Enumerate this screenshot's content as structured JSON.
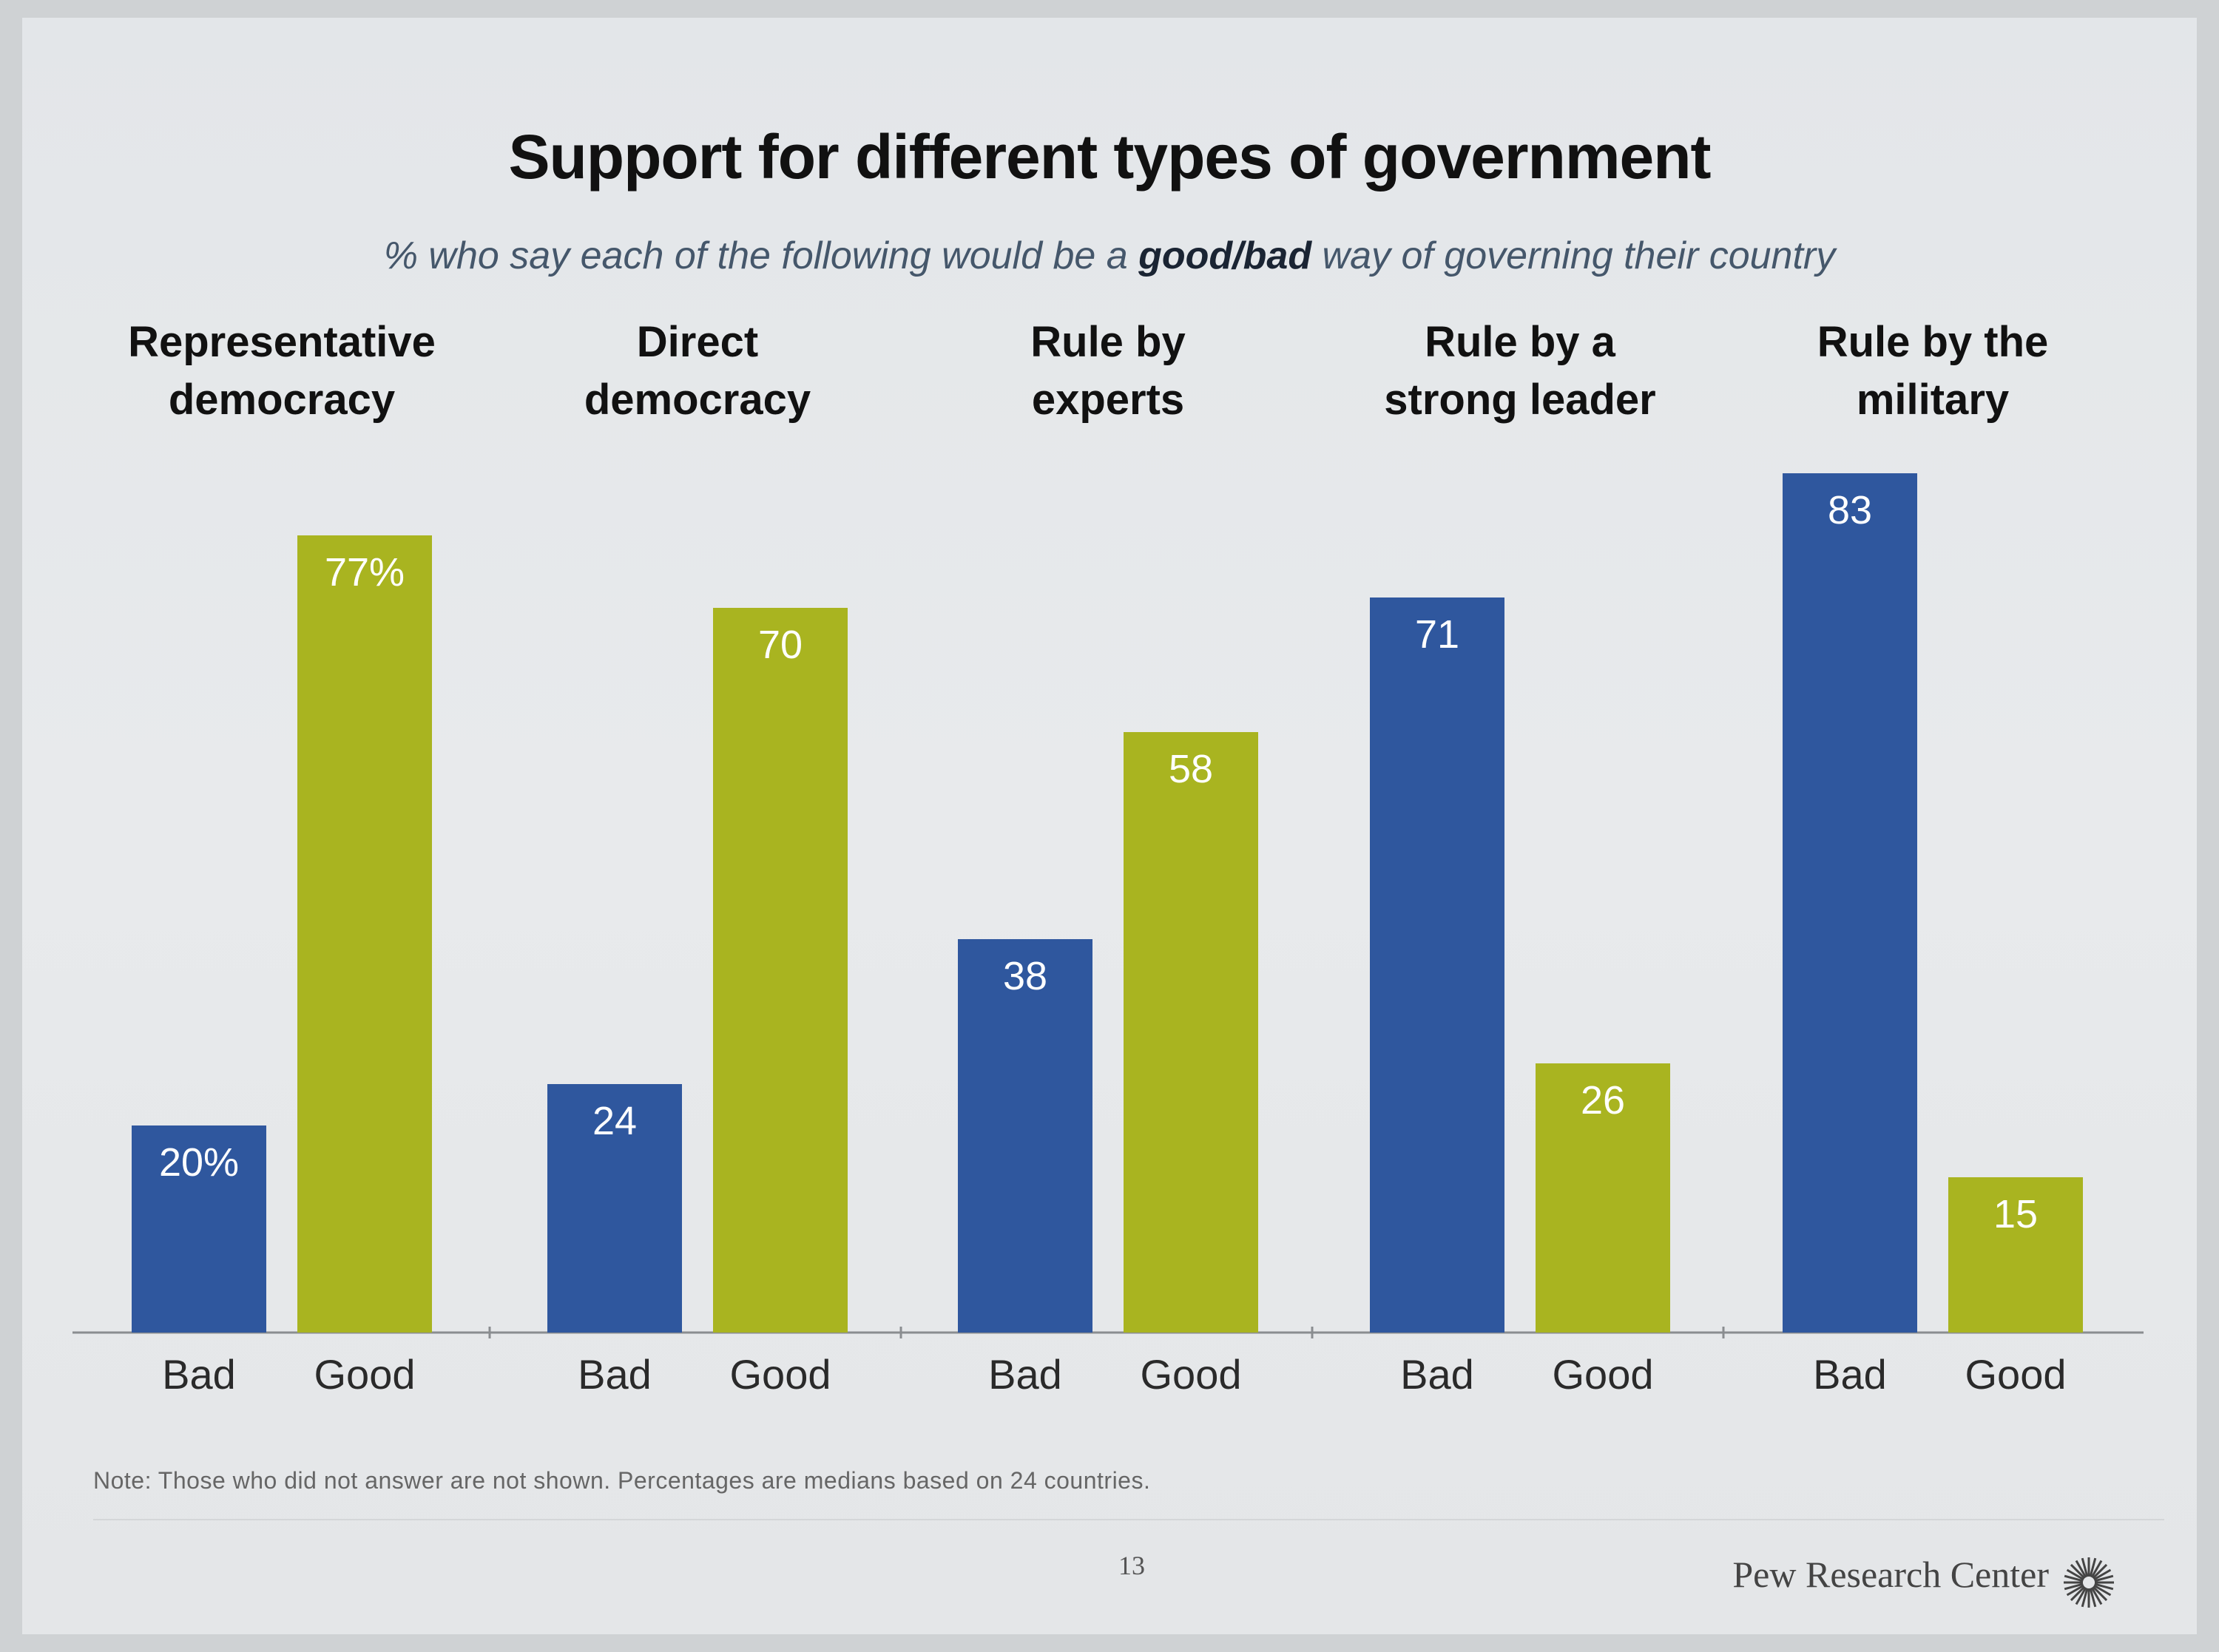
{
  "chart_data": {
    "type": "bar",
    "title": "Support for different types of government",
    "subtitle_parts": {
      "before": "% who say each of the following would be a ",
      "emphasis": "good/bad",
      "after": " way of governing their country"
    },
    "ylim": [
      0,
      100
    ],
    "colors": {
      "Bad": "#2f579e",
      "Good": "#a9b420"
    },
    "groups": [
      {
        "label_lines": [
          "Representative",
          "democracy"
        ],
        "bars": [
          {
            "name": "Bad",
            "value": 20,
            "display": "20%"
          },
          {
            "name": "Good",
            "value": 77,
            "display": "77%"
          }
        ]
      },
      {
        "label_lines": [
          "Direct",
          "democracy"
        ],
        "bars": [
          {
            "name": "Bad",
            "value": 24,
            "display": "24"
          },
          {
            "name": "Good",
            "value": 70,
            "display": "70"
          }
        ]
      },
      {
        "label_lines": [
          "Rule by",
          "experts"
        ],
        "bars": [
          {
            "name": "Bad",
            "value": 38,
            "display": "38"
          },
          {
            "name": "Good",
            "value": 58,
            "display": "58"
          }
        ]
      },
      {
        "label_lines": [
          "Rule by a",
          "strong leader"
        ],
        "bars": [
          {
            "name": "Bad",
            "value": 71,
            "display": "71"
          },
          {
            "name": "Good",
            "value": 26,
            "display": "26"
          }
        ]
      },
      {
        "label_lines": [
          "Rule by the",
          "military"
        ],
        "bars": [
          {
            "name": "Bad",
            "value": 83,
            "display": "83"
          },
          {
            "name": "Good",
            "value": 15,
            "display": "15"
          }
        ]
      }
    ]
  },
  "note": "Note: Those who did not answer are not shown. Percentages are medians based on 24 countries.",
  "page_number": "13",
  "brand": "Pew Research Center",
  "brand_logo_icon": "sunburst-icon"
}
